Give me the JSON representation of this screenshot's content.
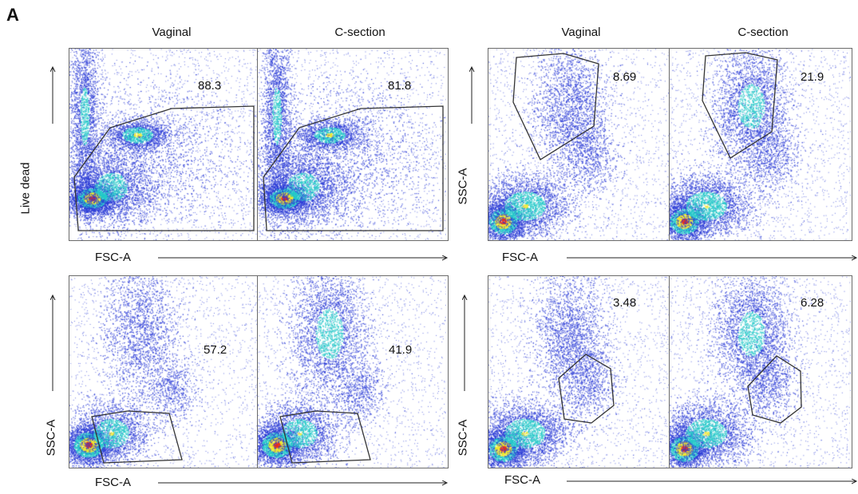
{
  "figure": {
    "panel_letter": "A"
  },
  "colors": {
    "density_low": "#2a3bd6",
    "density_mid": "#22c8c8",
    "density_high": "#f0e82a",
    "density_peak": "#e8301a",
    "gate": "#333333",
    "axis": "#222222"
  },
  "chart_data": [
    {
      "type": "scatter",
      "description_free": true,
      "columns": [
        "Vaginal",
        "C-section"
      ],
      "xlabel": "FSC-A",
      "ylabel": "Live dead",
      "gate_percentages": [
        "88.3",
        "81.8"
      ]
    },
    {
      "type": "scatter",
      "columns": [
        "Vaginal",
        "C-section"
      ],
      "xlabel": "FSC-A",
      "ylabel": "SSC-A",
      "gate_percentages": [
        "8.69",
        "21.9"
      ]
    },
    {
      "type": "scatter",
      "columns": [
        "",
        ""
      ],
      "xlabel": "FSC-A",
      "ylabel": "SSC-A",
      "gate_percentages": [
        "57.2",
        "41.9"
      ]
    },
    {
      "type": "scatter",
      "columns": [
        "",
        ""
      ],
      "xlabel": "FSC-A",
      "ylabel": "SSC-A",
      "gate_percentages": [
        "3.48",
        "6.28"
      ]
    }
  ]
}
